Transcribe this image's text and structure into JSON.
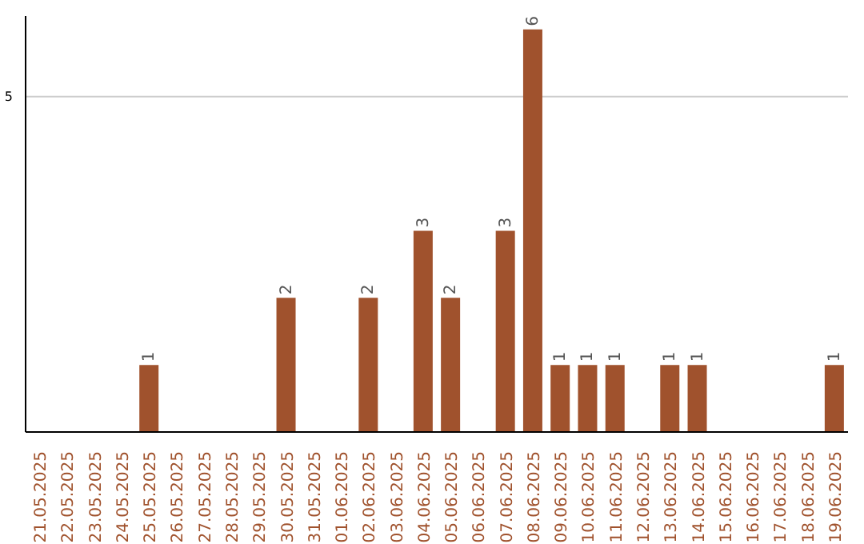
{
  "chart_data": {
    "type": "bar",
    "categories": [
      "21.05.2025",
      "22.05.2025",
      "23.05.2025",
      "24.05.2025",
      "25.05.2025",
      "26.05.2025",
      "27.05.2025",
      "28.05.2025",
      "29.05.2025",
      "30.05.2025",
      "31.05.2025",
      "01.06.2025",
      "02.06.2025",
      "03.06.2025",
      "04.06.2025",
      "05.06.2025",
      "06.06.2025",
      "07.06.2025",
      "08.06.2025",
      "09.06.2025",
      "10.06.2025",
      "11.06.2025",
      "12.06.2025",
      "13.06.2025",
      "14.06.2025",
      "15.06.2025",
      "16.06.2025",
      "17.06.2025",
      "18.06.2025",
      "19.06.2025"
    ],
    "values": [
      0,
      0,
      0,
      0,
      1,
      0,
      0,
      0,
      0,
      2,
      0,
      0,
      2,
      0,
      3,
      2,
      0,
      3,
      6,
      1,
      1,
      1,
      0,
      1,
      1,
      0,
      0,
      0,
      0,
      1
    ],
    "color": "#a0522d",
    "value_labels": [
      null,
      null,
      null,
      null,
      "1",
      null,
      null,
      null,
      null,
      "2",
      null,
      null,
      "2",
      null,
      "3",
      "2",
      null,
      "3",
      "6",
      "1",
      "1",
      "1",
      null,
      "1",
      "1",
      null,
      null,
      null,
      null,
      "1"
    ],
    "ylim": [
      0,
      6.2
    ],
    "yticks": [
      5
    ],
    "grid": "y"
  }
}
